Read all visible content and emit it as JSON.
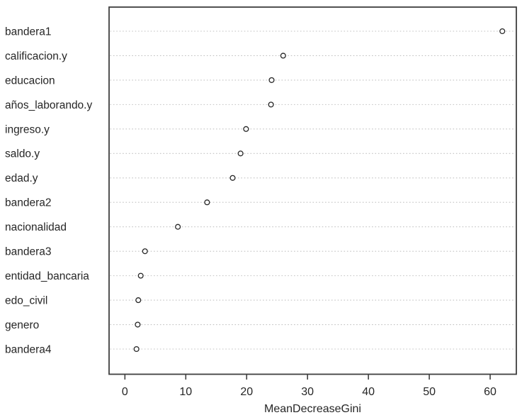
{
  "figure": {
    "background": "#ffffff",
    "frame_color": "#3f3f3f",
    "grid_color": "#c2c2c2",
    "point_fill": "#ffffff",
    "point_stroke": "#262626",
    "text_color": "#262626"
  },
  "chart_data": {
    "type": "scatter",
    "subtype": "dotchart",
    "title": "",
    "xlabel": "MeanDecreaseGini",
    "ylabel": "",
    "categories": [
      "bandera1",
      "calificacion.y",
      "educacion",
      "años_laborando.y",
      "ingreso.y",
      "saldo.y",
      "edad.y",
      "bandera2",
      "nacionalidad",
      "bandera3",
      "entidad_bancaria",
      "edo_civil",
      "genero",
      "bandera4"
    ],
    "values": [
      62,
      26,
      24.1,
      24,
      19.9,
      19,
      17.7,
      13.5,
      8.7,
      3.3,
      2.6,
      2.2,
      2.1,
      1.9
    ],
    "xticks": [
      0,
      10,
      20,
      30,
      40,
      50,
      60
    ],
    "xlim": [
      -2.6,
      64.3
    ],
    "grid": "dotted-horizontal",
    "legend": "none",
    "marker": "open-circle"
  }
}
